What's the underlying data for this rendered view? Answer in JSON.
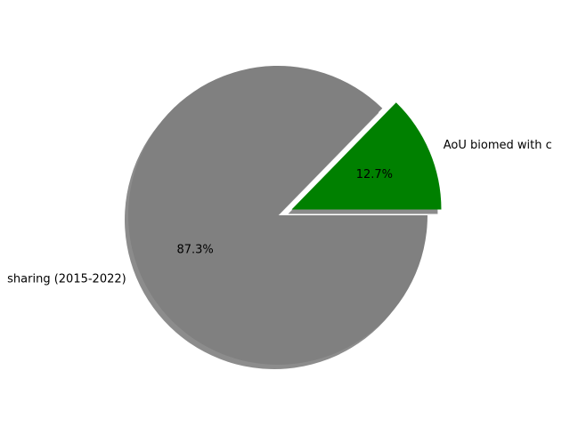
{
  "chart_data": {
    "type": "pie",
    "slices": [
      {
        "label": "AoU biomed with c",
        "value": 12.7,
        "pct_label": "12.7%",
        "color": "#008000",
        "exploded": true
      },
      {
        "label": "sharing (2015-2022)",
        "value": 87.3,
        "pct_label": "87.3%",
        "color": "#808080",
        "exploded": false
      }
    ],
    "shadow": true,
    "shadow_color": "#000000",
    "background": "#ffffff"
  }
}
